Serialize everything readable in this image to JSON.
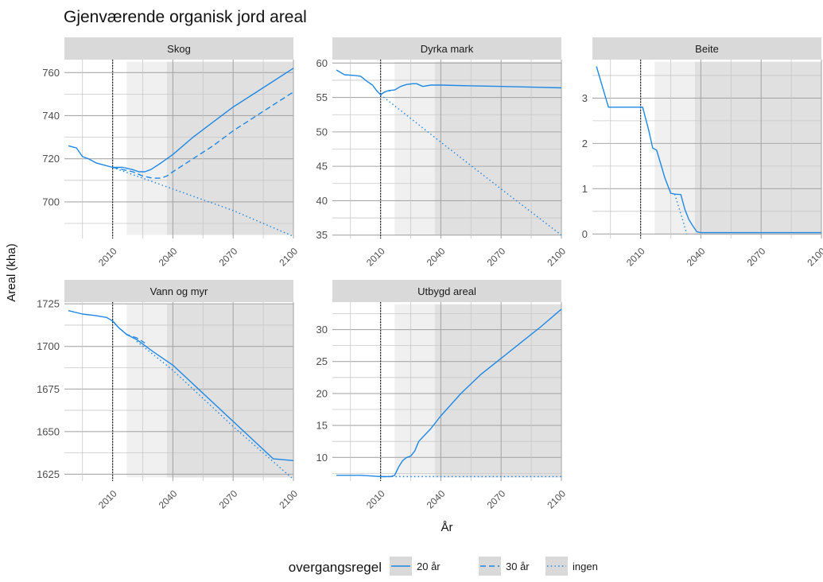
{
  "chart_data": {
    "type": "line",
    "title": "Gjenværende organisk jord areal",
    "xlabel": "År",
    "ylabel": "Areal (kha)",
    "x_ticks": [
      2010,
      2040,
      2070,
      2100
    ],
    "xlim": [
      1986,
      2100
    ],
    "shading": [
      {
        "from": 2017,
        "to": 2100,
        "fill": "#f0f0f0"
      },
      {
        "from": 2037,
        "to": 2100,
        "fill": "#e0e0e0"
      }
    ],
    "reference_line_x": 2010,
    "legend": {
      "title": "overgangsregel",
      "placement": "bottom",
      "entries": [
        {
          "label": "20 år",
          "dash": "solid"
        },
        {
          "label": "30 år",
          "dash": "dashed"
        },
        {
          "label": "ingen",
          "dash": "dotted"
        }
      ]
    },
    "color": "#1e88e5",
    "panels": [
      {
        "name": "Skog",
        "ylim": [
          683,
          766
        ],
        "yticks": [
          700,
          720,
          740,
          760
        ],
        "series": [
          {
            "name": "20 år",
            "points": [
              [
                1988,
                726
              ],
              [
                1992,
                725
              ],
              [
                1995,
                721
              ],
              [
                1998,
                720
              ],
              [
                2002,
                718
              ],
              [
                2006,
                717
              ],
              [
                2010,
                716
              ],
              [
                2015,
                716
              ],
              [
                2020,
                715
              ],
              [
                2023,
                714
              ],
              [
                2026,
                714
              ],
              [
                2029,
                715
              ],
              [
                2034,
                718
              ],
              [
                2040,
                722
              ],
              [
                2050,
                730
              ],
              [
                2060,
                737
              ],
              [
                2070,
                744
              ],
              [
                2080,
                750
              ],
              [
                2090,
                756
              ],
              [
                2100,
                762
              ]
            ]
          },
          {
            "name": "30 år",
            "points": [
              [
                2010,
                716
              ],
              [
                2015,
                715
              ],
              [
                2020,
                714
              ],
              [
                2025,
                712
              ],
              [
                2030,
                711
              ],
              [
                2034,
                711
              ],
              [
                2037,
                712
              ],
              [
                2040,
                714
              ],
              [
                2050,
                720
              ],
              [
                2060,
                726
              ],
              [
                2070,
                733
              ],
              [
                2080,
                739
              ],
              [
                2090,
                745
              ],
              [
                2100,
                751
              ]
            ]
          },
          {
            "name": "ingen",
            "points": [
              [
                2010,
                716
              ],
              [
                2040,
                706
              ],
              [
                2070,
                696
              ],
              [
                2100,
                684
              ]
            ]
          }
        ]
      },
      {
        "name": "Dyrka mark",
        "ylim": [
          34.5,
          60.5
        ],
        "yticks": [
          35,
          40,
          45,
          50,
          55,
          60
        ],
        "series": [
          {
            "name": "20 år",
            "points": [
              [
                1988,
                59.0
              ],
              [
                1992,
                58.3
              ],
              [
                1997,
                58.2
              ],
              [
                2000,
                58.1
              ],
              [
                2003,
                57.4
              ],
              [
                2006,
                56.8
              ],
              [
                2008,
                56.0
              ],
              [
                2010,
                55.4
              ],
              [
                2012,
                55.8
              ],
              [
                2014,
                56.0
              ],
              [
                2017,
                56.1
              ],
              [
                2020,
                56.6
              ],
              [
                2023,
                56.9
              ],
              [
                2026,
                57.0
              ],
              [
                2028,
                57.0
              ],
              [
                2031,
                56.6
              ],
              [
                2035,
                56.8
              ],
              [
                2040,
                56.8
              ],
              [
                2055,
                56.7
              ],
              [
                2070,
                56.6
              ],
              [
                2085,
                56.5
              ],
              [
                2100,
                56.4
              ]
            ]
          },
          {
            "name": "30 år",
            "points": [
              [
                2010,
                55.4
              ],
              [
                2012,
                55.8
              ],
              [
                2015,
                56.0
              ]
            ]
          },
          {
            "name": "ingen",
            "points": [
              [
                2010,
                55.4
              ],
              [
                2040,
                48.5
              ],
              [
                2070,
                41.7
              ],
              [
                2100,
                35.0
              ]
            ]
          }
        ]
      },
      {
        "name": "Beite",
        "ylim": [
          -0.1,
          3.85
        ],
        "yticks": [
          0,
          1,
          2,
          3
        ],
        "series": [
          {
            "name": "20 år",
            "points": [
              [
                1988,
                3.7
              ],
              [
                1990,
                3.4
              ],
              [
                1994,
                2.8
              ],
              [
                1998,
                2.8
              ],
              [
                2004,
                2.8
              ],
              [
                2010,
                2.8
              ],
              [
                2011,
                2.8
              ],
              [
                2014,
                2.3
              ],
              [
                2016,
                1.9
              ],
              [
                2018,
                1.85
              ],
              [
                2020,
                1.55
              ],
              [
                2022,
                1.25
              ],
              [
                2025,
                0.9
              ],
              [
                2027,
                0.88
              ],
              [
                2030,
                0.87
              ],
              [
                2032,
                0.55
              ],
              [
                2034,
                0.32
              ],
              [
                2036,
                0.18
              ],
              [
                2038,
                0.05
              ],
              [
                2040,
                0.03
              ],
              [
                2070,
                0.03
              ],
              [
                2100,
                0.03
              ]
            ]
          },
          {
            "name": "30 år",
            "points": [
              [
                2010,
                2.8
              ],
              [
                2011,
                2.8
              ]
            ]
          },
          {
            "name": "ingen",
            "points": [
              [
                2027,
                0.88
              ],
              [
                2031,
                0.3
              ],
              [
                2033,
                0.0
              ]
            ]
          }
        ]
      },
      {
        "name": "Vann og myr",
        "ylim": [
          1621,
          1726
        ],
        "yticks": [
          1625,
          1650,
          1675,
          1700,
          1725
        ],
        "series": [
          {
            "name": "20 år",
            "points": [
              [
                1988,
                1721
              ],
              [
                1995,
                1719
              ],
              [
                2002,
                1718
              ],
              [
                2007,
                1717
              ],
              [
                2010,
                1715
              ],
              [
                2013,
                1711
              ],
              [
                2017,
                1707
              ],
              [
                2022,
                1704
              ],
              [
                2030,
                1697
              ],
              [
                2040,
                1689
              ],
              [
                2050,
                1678
              ],
              [
                2060,
                1667
              ],
              [
                2070,
                1656
              ],
              [
                2080,
                1645
              ],
              [
                2090,
                1634
              ],
              [
                2100,
                1633
              ]
            ]
          },
          {
            "name": "30 år",
            "points": [
              [
                2010,
                1715
              ],
              [
                2013,
                1711
              ],
              [
                2017,
                1707
              ],
              [
                2022,
                1705
              ],
              [
                2026,
                1702
              ]
            ]
          },
          {
            "name": "ingen",
            "points": [
              [
                2022,
                1703
              ],
              [
                2040,
                1686
              ],
              [
                2070,
                1653
              ],
              [
                2100,
                1622
              ]
            ]
          }
        ]
      },
      {
        "name": "Utbygd areal",
        "ylim": [
          6.3,
          34.3
        ],
        "yticks": [
          10,
          15,
          20,
          25,
          30
        ],
        "series": [
          {
            "name": "20 år",
            "points": [
              [
                1988,
                7.2
              ],
              [
                2000,
                7.2
              ],
              [
                2005,
                7.1
              ],
              [
                2010,
                7.0
              ],
              [
                2015,
                7.0
              ],
              [
                2017,
                7.2
              ],
              [
                2019,
                8.5
              ],
              [
                2021,
                9.5
              ],
              [
                2023,
                10.0
              ],
              [
                2025,
                10.2
              ],
              [
                2027,
                11.0
              ],
              [
                2029,
                12.5
              ],
              [
                2032,
                13.5
              ],
              [
                2035,
                14.5
              ],
              [
                2040,
                16.5
              ],
              [
                2050,
                20.0
              ],
              [
                2060,
                23.0
              ],
              [
                2070,
                25.5
              ],
              [
                2080,
                28.0
              ],
              [
                2090,
                30.5
              ],
              [
                2100,
                33.2
              ]
            ]
          },
          {
            "name": "30 år",
            "points": [
              [
                2010,
                7.0
              ],
              [
                2015,
                7.0
              ]
            ]
          },
          {
            "name": "ingen",
            "points": [
              [
                2010,
                7.0
              ],
              [
                2100,
                7.0
              ]
            ]
          }
        ]
      }
    ]
  }
}
